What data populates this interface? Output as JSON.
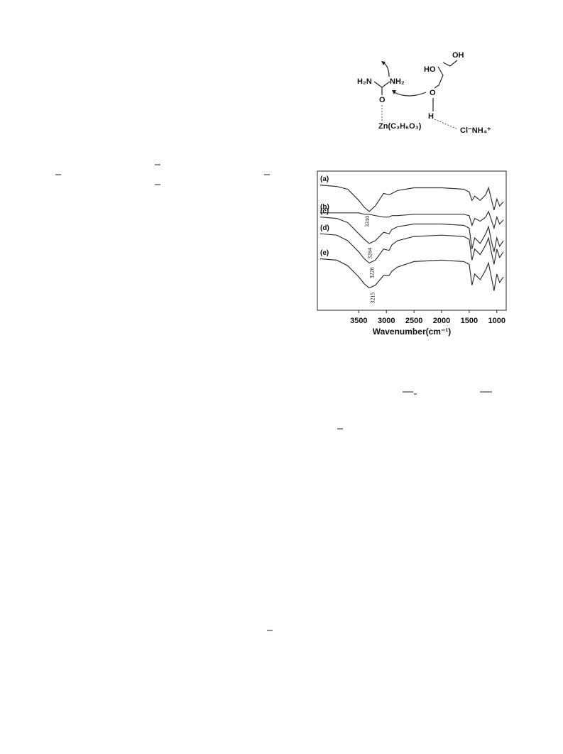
{
  "scheme": {
    "labels": [
      "OH",
      "HO",
      "H₂N",
      "NH₂",
      "O",
      "O",
      "H",
      "Zn(C₃H₆O₃)",
      "Cl⁻NH₄⁺"
    ]
  },
  "chart_data": {
    "type": "line",
    "x_label": "Wavenumber(cm⁻¹)",
    "x": [
      4200,
      3900,
      3700,
      3500,
      3400,
      3310,
      3200,
      3050,
      2950,
      2900,
      2800,
      2500,
      2000,
      1600,
      1500,
      1450,
      1400,
      1300,
      1200,
      1150,
      1100,
      1050,
      1000,
      950,
      880
    ],
    "xlim": [
      4250,
      830
    ],
    "xticks": [
      3500,
      3000,
      2500,
      2000,
      1500,
      1000
    ],
    "ylim": [
      0,
      100
    ],
    "peak_labels": [
      3310,
      3264,
      3226,
      3215
    ],
    "series": [
      {
        "name": "(a)",
        "color": "#333333",
        "values": [
          90,
          89,
          87,
          79,
          74,
          71,
          75,
          84,
          83,
          84,
          86,
          88,
          88,
          87,
          85,
          79,
          82,
          79,
          83,
          88,
          80,
          72,
          80,
          75,
          78
        ]
      },
      {
        "name": "(b)",
        "color": "#333333",
        "values": [
          70,
          70,
          70,
          70,
          69,
          69,
          68,
          67,
          67,
          68,
          68,
          69,
          69,
          69,
          68,
          61,
          66,
          64,
          67,
          71,
          65,
          59,
          67,
          62,
          65
        ]
      },
      {
        "name": "(c)",
        "color": "#333333",
        "values": [
          67,
          66,
          63,
          55,
          51,
          48,
          50,
          56,
          55,
          58,
          60,
          62,
          62,
          61,
          59,
          44,
          52,
          48,
          55,
          60,
          50,
          42,
          52,
          46,
          50
        ]
      },
      {
        "name": "(d)",
        "color": "#333333",
        "values": [
          55,
          54,
          50,
          42,
          37,
          34,
          36,
          44,
          43,
          47,
          50,
          53,
          54,
          53,
          51,
          36,
          44,
          40,
          47,
          52,
          42,
          33,
          44,
          38,
          42
        ]
      },
      {
        "name": "(e)",
        "color": "#333333",
        "values": [
          37,
          36,
          32,
          24,
          19,
          16,
          18,
          25,
          25,
          28,
          31,
          35,
          36,
          35,
          33,
          18,
          26,
          22,
          29,
          34,
          24,
          14,
          26,
          20,
          24
        ]
      }
    ]
  }
}
